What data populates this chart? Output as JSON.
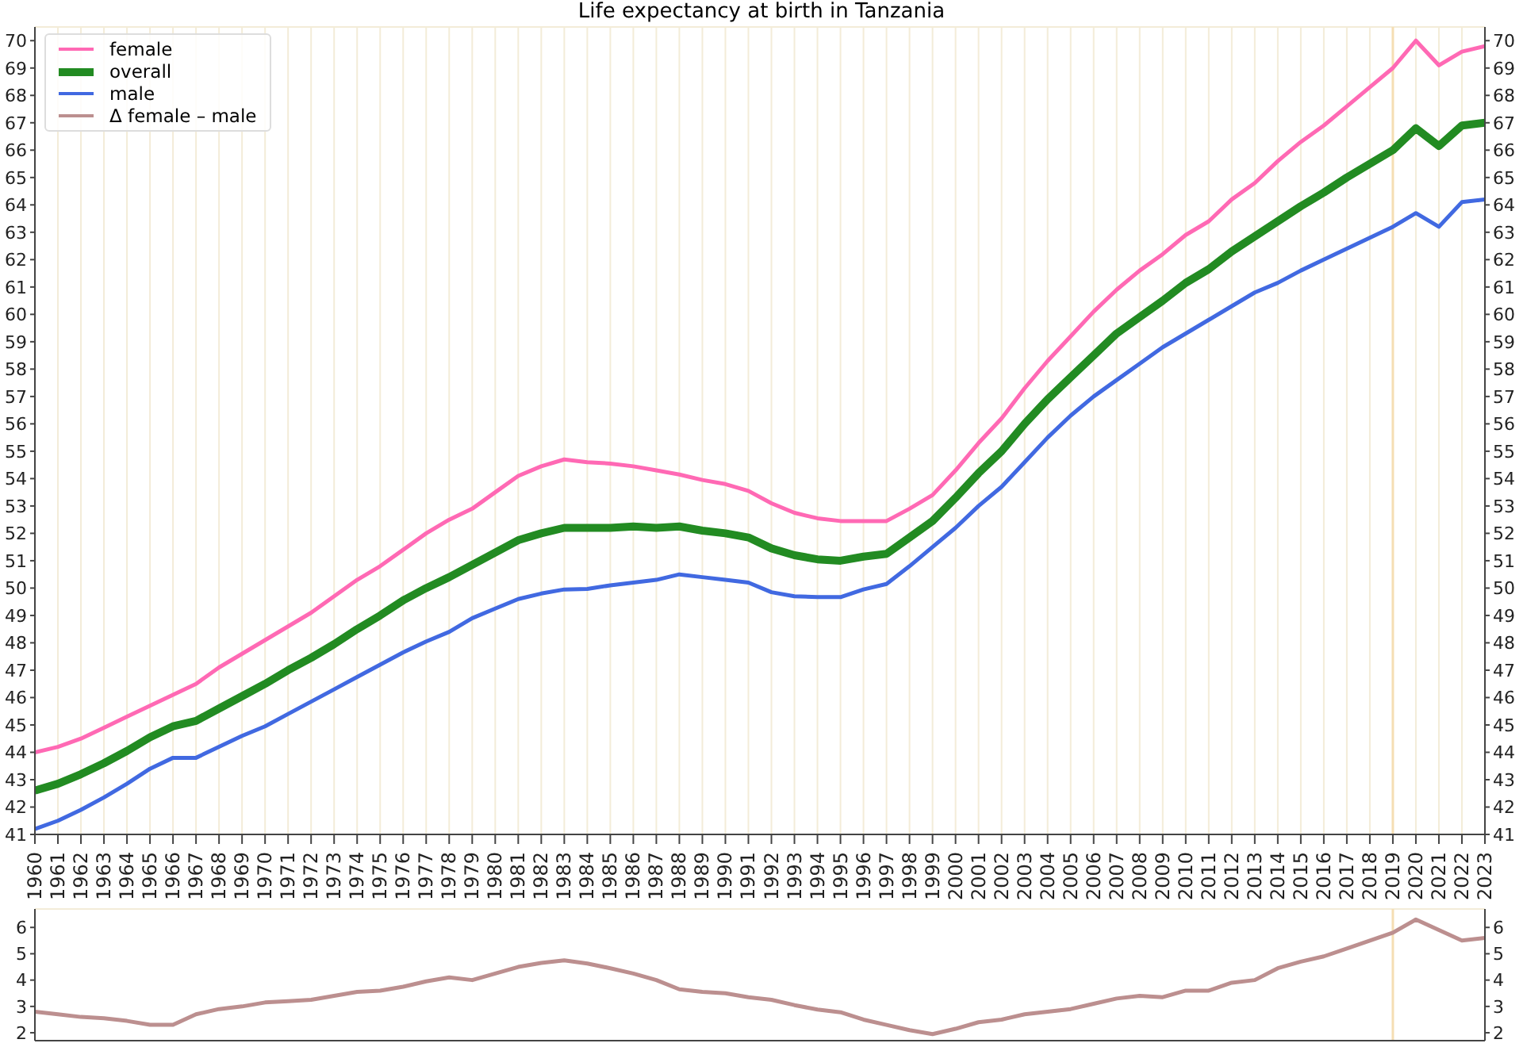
{
  "chart_data": [
    {
      "type": "line",
      "title": "Life expectancy at birth in Tanzania",
      "x": [
        1960,
        1961,
        1962,
        1963,
        1964,
        1965,
        1966,
        1967,
        1968,
        1969,
        1970,
        1971,
        1972,
        1973,
        1974,
        1975,
        1976,
        1977,
        1978,
        1979,
        1980,
        1981,
        1982,
        1983,
        1984,
        1985,
        1986,
        1987,
        1988,
        1989,
        1990,
        1991,
        1992,
        1993,
        1994,
        1995,
        1996,
        1997,
        1998,
        1999,
        2000,
        2001,
        2002,
        2003,
        2004,
        2005,
        2006,
        2007,
        2008,
        2009,
        2010,
        2011,
        2012,
        2013,
        2014,
        2015,
        2016,
        2017,
        2018,
        2019,
        2020,
        2021,
        2022,
        2023
      ],
      "series": [
        {
          "name": "female",
          "color": "#ff69b4",
          "values": [
            44.0,
            44.2,
            44.5,
            44.9,
            45.3,
            45.7,
            46.1,
            46.5,
            47.1,
            47.6,
            48.1,
            48.6,
            49.1,
            49.7,
            50.3,
            50.8,
            51.4,
            52.0,
            52.5,
            52.9,
            53.5,
            54.1,
            54.45,
            54.7,
            54.6,
            54.55,
            54.45,
            54.3,
            54.15,
            53.95,
            53.8,
            53.55,
            53.1,
            52.75,
            52.55,
            52.45,
            52.45,
            52.45,
            52.9,
            53.4,
            54.3,
            55.3,
            56.2,
            57.3,
            58.3,
            59.2,
            60.1,
            60.9,
            61.6,
            62.2,
            62.9,
            63.4,
            64.2,
            64.8,
            65.6,
            66.3,
            66.9,
            67.6,
            68.3,
            69.0,
            70.0,
            69.1,
            69.6,
            69.8
          ]
        },
        {
          "name": "overall",
          "color": "#228b22",
          "values": [
            42.6,
            42.85,
            43.2,
            43.6,
            44.05,
            44.55,
            44.95,
            45.15,
            45.6,
            46.05,
            46.5,
            47.0,
            47.45,
            47.95,
            48.5,
            49.0,
            49.55,
            50.0,
            50.4,
            50.85,
            51.3,
            51.75,
            52.0,
            52.2,
            52.2,
            52.2,
            52.25,
            52.2,
            52.25,
            52.1,
            52.0,
            51.85,
            51.45,
            51.2,
            51.05,
            51.0,
            51.15,
            51.25,
            51.85,
            52.45,
            53.3,
            54.2,
            55.0,
            56.0,
            56.9,
            57.7,
            58.5,
            59.3,
            59.9,
            60.5,
            61.15,
            61.65,
            62.3,
            62.85,
            63.4,
            63.95,
            64.45,
            65.0,
            65.5,
            66.0,
            66.8,
            66.15,
            66.9,
            67.0
          ]
        },
        {
          "name": "male",
          "color": "#4169e1",
          "values": [
            41.2,
            41.5,
            41.9,
            42.35,
            42.85,
            43.4,
            43.8,
            43.8,
            44.2,
            44.6,
            44.95,
            45.4,
            45.85,
            46.3,
            46.75,
            47.2,
            47.65,
            48.05,
            48.4,
            48.9,
            49.25,
            49.6,
            49.8,
            49.95,
            49.97,
            50.1,
            50.2,
            50.3,
            50.5,
            50.4,
            50.3,
            50.2,
            49.85,
            49.7,
            49.67,
            49.67,
            49.95,
            50.15,
            50.8,
            51.5,
            52.2,
            53.0,
            53.7,
            54.6,
            55.5,
            56.3,
            57.0,
            57.6,
            58.2,
            58.8,
            59.3,
            59.8,
            60.3,
            60.8,
            61.15,
            61.6,
            62.0,
            62.4,
            62.8,
            63.2,
            63.7,
            63.2,
            64.1,
            64.2
          ]
        }
      ],
      "xlim": [
        1960,
        2023
      ],
      "xticks": [
        1960,
        1961,
        1962,
        1963,
        1964,
        1965,
        1966,
        1967,
        1968,
        1969,
        1970,
        1971,
        1972,
        1973,
        1974,
        1975,
        1976,
        1977,
        1978,
        1979,
        1980,
        1981,
        1982,
        1983,
        1984,
        1985,
        1986,
        1987,
        1988,
        1989,
        1990,
        1991,
        1992,
        1993,
        1994,
        1995,
        1996,
        1997,
        1998,
        1999,
        2000,
        2001,
        2002,
        2003,
        2004,
        2005,
        2006,
        2007,
        2008,
        2009,
        2010,
        2011,
        2012,
        2013,
        2014,
        2015,
        2016,
        2017,
        2018,
        2019,
        2020,
        2021,
        2022,
        2023
      ],
      "ylim": [
        41,
        70.5
      ],
      "yticks": [
        41,
        42,
        43,
        44,
        45,
        46,
        47,
        48,
        49,
        50,
        51,
        52,
        53,
        54,
        55,
        56,
        57,
        58,
        59,
        60,
        61,
        62,
        63,
        64,
        65,
        66,
        67,
        68,
        69,
        70
      ],
      "y2lim": [
        41,
        70.5
      ],
      "y2ticks": [
        41,
        42,
        43,
        44,
        45,
        46,
        47,
        48,
        49,
        50,
        51,
        52,
        53,
        54,
        55,
        56,
        57,
        58,
        59,
        60,
        61,
        62,
        63,
        64,
        65,
        66,
        67,
        68,
        69,
        70
      ],
      "ref_lines": [
        {
          "axis": "x",
          "value": 2019,
          "color": "#f5deb3"
        }
      ],
      "grid": true,
      "legend": "top left"
    },
    {
      "type": "line",
      "x": [
        1960,
        1961,
        1962,
        1963,
        1964,
        1965,
        1966,
        1967,
        1968,
        1969,
        1970,
        1971,
        1972,
        1973,
        1974,
        1975,
        1976,
        1977,
        1978,
        1979,
        1980,
        1981,
        1982,
        1983,
        1984,
        1985,
        1986,
        1987,
        1988,
        1989,
        1990,
        1991,
        1992,
        1993,
        1994,
        1995,
        1996,
        1997,
        1998,
        1999,
        2000,
        2001,
        2002,
        2003,
        2004,
        2005,
        2006,
        2007,
        2008,
        2009,
        2010,
        2011,
        2012,
        2013,
        2014,
        2015,
        2016,
        2017,
        2018,
        2019,
        2020,
        2021,
        2022,
        2023
      ],
      "series": [
        {
          "name": "Δ female – male",
          "color": "#bc8f8f",
          "values": [
            2.8,
            2.7,
            2.6,
            2.55,
            2.45,
            2.3,
            2.3,
            2.7,
            2.9,
            3.0,
            3.15,
            3.2,
            3.25,
            3.4,
            3.55,
            3.6,
            3.75,
            3.95,
            4.1,
            4.0,
            4.25,
            4.5,
            4.65,
            4.75,
            4.63,
            4.45,
            4.25,
            4.0,
            3.65,
            3.55,
            3.5,
            3.35,
            3.25,
            3.05,
            2.88,
            2.78,
            2.5,
            2.3,
            2.1,
            1.95,
            2.15,
            2.4,
            2.5,
            2.7,
            2.8,
            2.9,
            3.1,
            3.3,
            3.4,
            3.35,
            3.6,
            3.6,
            3.9,
            4.0,
            4.45,
            4.7,
            4.9,
            5.2,
            5.5,
            5.8,
            6.3,
            5.9,
            5.5,
            5.6
          ]
        }
      ],
      "xlim": [
        1960,
        2023
      ],
      "xticks": [
        1960,
        1961,
        1962,
        1963,
        1964,
        1965,
        1966,
        1967,
        1968,
        1969,
        1970,
        1971,
        1972,
        1973,
        1974,
        1975,
        1976,
        1977,
        1978,
        1979,
        1980,
        1981,
        1982,
        1983,
        1984,
        1985,
        1986,
        1987,
        1988,
        1989,
        1990,
        1991,
        1992,
        1993,
        1994,
        1995,
        1996,
        1997,
        1998,
        1999,
        2000,
        2001,
        2002,
        2003,
        2004,
        2005,
        2006,
        2007,
        2008,
        2009,
        2010,
        2011,
        2012,
        2013,
        2014,
        2015,
        2016,
        2017,
        2018,
        2019,
        2020,
        2021,
        2022,
        2023
      ],
      "ylim": [
        1.7,
        6.7
      ],
      "yticks": [
        2,
        3,
        4,
        5,
        6
      ],
      "y2lim": [
        1.7,
        6.7
      ],
      "y2ticks": [
        2,
        3,
        4,
        5,
        6
      ],
      "ref_lines": [
        {
          "axis": "x",
          "value": 2019,
          "color": "#f5deb3"
        }
      ],
      "grid": true,
      "tick_labels": "y"
    }
  ]
}
